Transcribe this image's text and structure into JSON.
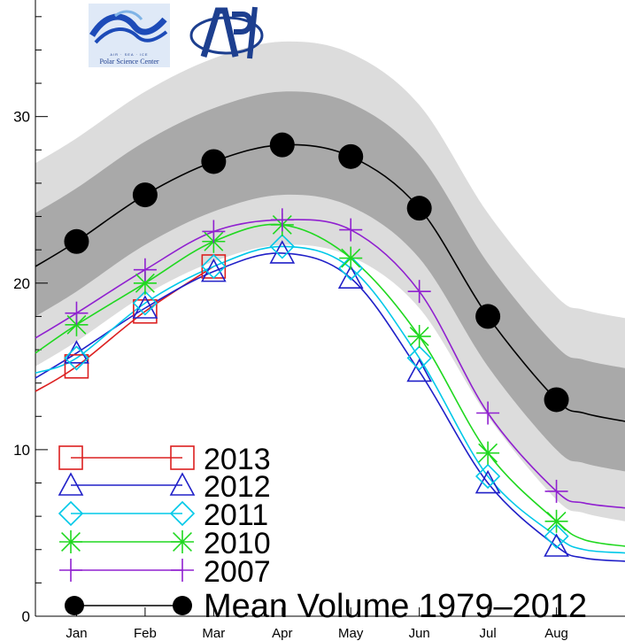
{
  "logos": {
    "psc_text": "Polar Science Center",
    "psc_subtext": "AIR · SEA · ICE",
    "apl_text": "APL"
  },
  "chart_data": {
    "type": "line",
    "title": "",
    "xlabel": "",
    "ylabel": "",
    "categories": [
      "Jan",
      "Feb",
      "Mar",
      "Apr",
      "May",
      "Jun",
      "Jul",
      "Aug"
    ],
    "xlim": [
      0.4,
      9.0
    ],
    "ylim": [
      0,
      37
    ],
    "yticks": [
      0,
      10,
      20,
      30
    ],
    "mean_curve": {
      "x": [
        0.4,
        1.0,
        2.0,
        3.0,
        4.0,
        5.0,
        6.0,
        7.0,
        8.0,
        8.4,
        9.0
      ],
      "y": [
        21.0,
        22.5,
        25.3,
        27.3,
        28.3,
        27.6,
        24.5,
        18.0,
        13.0,
        12.2,
        11.7
      ]
    },
    "bands": [
      {
        "name": "outer",
        "color": "#dcdcdc",
        "offset_upper": 6.2,
        "offset_lower": 6.0
      },
      {
        "name": "inner",
        "color": "#a9a9a9",
        "offset_upper": 3.2,
        "offset_lower": 3.0
      }
    ],
    "series": [
      {
        "name": "2013",
        "color": "#dc2020",
        "marker": "square",
        "x": [
          0.4,
          1.0,
          2.0,
          3.0
        ],
        "y": [
          13.5,
          15.0,
          18.3,
          21.0
        ],
        "marker_x": [
          1,
          2,
          3
        ],
        "marker_y": [
          15.0,
          18.3,
          21.0
        ]
      },
      {
        "name": "2012",
        "color": "#2020c8",
        "marker": "triangle",
        "x": [
          0.4,
          1.0,
          2.0,
          3.0,
          4.0,
          5.0,
          6.0,
          7.0,
          8.0,
          8.4,
          9.0
        ],
        "y": [
          14.3,
          15.8,
          18.5,
          20.7,
          21.8,
          20.3,
          14.7,
          8.0,
          4.2,
          3.5,
          3.3
        ],
        "marker_x": [
          1,
          2,
          3,
          4,
          5,
          6,
          7,
          8
        ],
        "marker_y": [
          15.8,
          18.5,
          20.7,
          21.8,
          20.3,
          14.7,
          8.0,
          4.2
        ]
      },
      {
        "name": "2011",
        "color": "#00c8e8",
        "marker": "diamond",
        "x": [
          0.4,
          1.0,
          2.0,
          3.0,
          4.0,
          5.0,
          6.0,
          7.0,
          8.0,
          8.4,
          9.0
        ],
        "y": [
          14.6,
          15.5,
          18.8,
          21.0,
          22.2,
          20.9,
          15.5,
          8.4,
          4.8,
          4.0,
          3.8
        ],
        "marker_x": [
          1,
          2,
          3,
          4,
          5,
          6,
          7,
          8
        ],
        "marker_y": [
          15.5,
          18.8,
          21.0,
          22.2,
          20.9,
          15.5,
          8.4,
          4.8
        ]
      },
      {
        "name": "2010",
        "color": "#20d820",
        "marker": "asterisk",
        "x": [
          0.4,
          1.0,
          2.0,
          3.0,
          4.0,
          5.0,
          6.0,
          7.0,
          8.0,
          8.4,
          9.0
        ],
        "y": [
          15.8,
          17.5,
          20.0,
          22.5,
          23.5,
          21.5,
          16.8,
          9.8,
          5.7,
          4.6,
          4.2
        ],
        "marker_x": [
          1,
          2,
          3,
          4,
          5,
          6,
          7,
          8
        ],
        "marker_y": [
          17.5,
          20.0,
          22.5,
          23.5,
          21.5,
          16.8,
          9.8,
          5.7
        ]
      },
      {
        "name": "2007",
        "color": "#9020d0",
        "marker": "plus",
        "x": [
          0.4,
          1.0,
          2.0,
          3.0,
          4.0,
          5.0,
          6.0,
          7.0,
          8.0,
          8.4,
          9.0
        ],
        "y": [
          16.7,
          18.2,
          20.8,
          23.1,
          23.8,
          23.2,
          19.5,
          12.2,
          7.5,
          6.8,
          6.5
        ],
        "marker_x": [
          1,
          2,
          3,
          4,
          5,
          6,
          7,
          8
        ],
        "marker_y": [
          18.2,
          20.8,
          23.1,
          23.8,
          23.2,
          19.5,
          12.2,
          7.5
        ]
      },
      {
        "name": "Mean Volume 1979-2012",
        "color": "#000000",
        "marker": "circle",
        "x": [
          0.4,
          1.0,
          2.0,
          3.0,
          4.0,
          5.0,
          6.0,
          7.0,
          8.0,
          8.4,
          9.0
        ],
        "y": [
          21.0,
          22.5,
          25.3,
          27.3,
          28.3,
          27.6,
          24.5,
          18.0,
          13.0,
          12.2,
          11.7
        ],
        "marker_x": [
          1,
          2,
          3,
          4,
          5,
          6,
          7,
          8
        ],
        "marker_y": [
          22.5,
          25.3,
          27.3,
          28.3,
          27.6,
          24.5,
          18.0,
          13.0
        ]
      }
    ],
    "legend": {
      "placement": "bottom-left",
      "labels": [
        "2013",
        "2012",
        "2011",
        "2010",
        "2007",
        "Mean Volume 1979–2012"
      ]
    }
  }
}
